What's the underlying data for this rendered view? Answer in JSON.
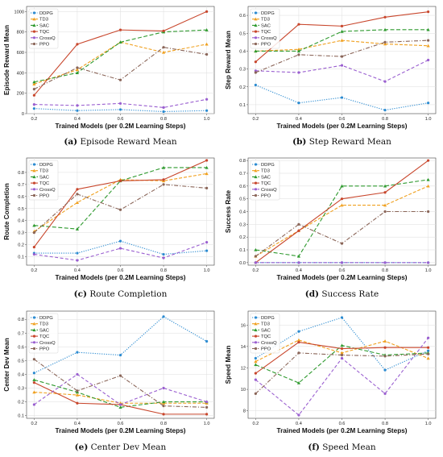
{
  "x_ticks": [
    "0.2",
    "0.4",
    "0.6",
    "0.8",
    "1.0"
  ],
  "legend": [
    "DDPG",
    "TD3",
    "SAC",
    "TQC",
    "CrossQ",
    "PPO"
  ],
  "styles": [
    {
      "color": "#2b8bd1",
      "dash": "1.2,1.6",
      "marker": "circle"
    },
    {
      "color": "#f0a01e",
      "dash": "4,2",
      "marker": "triangle"
    },
    {
      "color": "#2f9a2f",
      "dash": "5,2.5",
      "marker": "triangle"
    },
    {
      "color": "#c8462c",
      "dash": "",
      "marker": "circle"
    },
    {
      "color": "#9a5fd0",
      "dash": "4,2.5",
      "marker": "circle"
    },
    {
      "color": "#8a6558",
      "dash": "5,2,1.2,2",
      "marker": "circle"
    }
  ],
  "chart_data": [
    {
      "type": "line",
      "caption_letter": "(a)",
      "caption_text": " Episode Reward Mean",
      "xlabel": "Trained Models (per 0.2M Learning Steps)",
      "ylabel": "Episode Reward Mean",
      "x": [
        0.2,
        0.4,
        0.6,
        0.8,
        1.0
      ],
      "ylim": [
        0,
        1050
      ],
      "yticks": [
        0,
        200,
        400,
        600,
        800,
        1000
      ],
      "grid": true,
      "legend_position": "upper-left",
      "series": [
        {
          "name": "DDPG",
          "values": [
            50,
            30,
            40,
            20,
            30
          ]
        },
        {
          "name": "TD3",
          "values": [
            290,
            430,
            700,
            600,
            680
          ]
        },
        {
          "name": "SAC",
          "values": [
            310,
            400,
            700,
            800,
            820
          ]
        },
        {
          "name": "TQC",
          "values": [
            180,
            680,
            820,
            810,
            1000
          ]
        },
        {
          "name": "CrossQ",
          "values": [
            90,
            80,
            100,
            60,
            140
          ]
        },
        {
          "name": "PPO",
          "values": [
            240,
            450,
            330,
            650,
            580
          ]
        }
      ]
    },
    {
      "type": "line",
      "caption_letter": "(b)",
      "caption_text": " Step Reward Mean",
      "xlabel": "Trained Models (per 0.2M Learning Steps)",
      "ylabel": "Step Reward Mean",
      "x": [
        0.2,
        0.4,
        0.6,
        0.8,
        1.0
      ],
      "ylim": [
        0.05,
        0.65
      ],
      "yticks": [
        0.1,
        0.2,
        0.3,
        0.4,
        0.5,
        0.6
      ],
      "grid": true,
      "legend_position": "upper-left",
      "series": [
        {
          "name": "DDPG",
          "values": [
            0.21,
            0.11,
            0.14,
            0.07,
            0.11
          ]
        },
        {
          "name": "TD3",
          "values": [
            0.4,
            0.41,
            0.46,
            0.44,
            0.43
          ]
        },
        {
          "name": "SAC",
          "values": [
            0.4,
            0.4,
            0.51,
            0.52,
            0.52
          ]
        },
        {
          "name": "TQC",
          "values": [
            0.34,
            0.55,
            0.54,
            0.59,
            0.62
          ]
        },
        {
          "name": "CrossQ",
          "values": [
            0.29,
            0.28,
            0.32,
            0.23,
            0.35
          ]
        },
        {
          "name": "PPO",
          "values": [
            0.28,
            0.38,
            0.37,
            0.45,
            0.46
          ]
        }
      ]
    },
    {
      "type": "line",
      "caption_letter": "(c)",
      "caption_text": " Route Completion",
      "xlabel": "Trained Models (per 0.2M Learning Steps)",
      "ylabel": "Route Completion",
      "x": [
        0.2,
        0.4,
        0.6,
        0.8,
        1.0
      ],
      "ylim": [
        0.03,
        0.92
      ],
      "yticks": [
        0.1,
        0.2,
        0.3,
        0.4,
        0.5,
        0.6,
        0.7,
        0.8
      ],
      "grid": true,
      "legend_position": "upper-left",
      "series": [
        {
          "name": "DDPG",
          "values": [
            0.13,
            0.13,
            0.23,
            0.12,
            0.15
          ]
        },
        {
          "name": "TD3",
          "values": [
            0.31,
            0.55,
            0.74,
            0.73,
            0.79
          ]
        },
        {
          "name": "SAC",
          "values": [
            0.36,
            0.33,
            0.73,
            0.84,
            0.84
          ]
        },
        {
          "name": "TQC",
          "values": [
            0.18,
            0.66,
            0.73,
            0.74,
            0.9
          ]
        },
        {
          "name": "CrossQ",
          "values": [
            0.12,
            0.07,
            0.17,
            0.09,
            0.22
          ]
        },
        {
          "name": "PPO",
          "values": [
            0.3,
            0.62,
            0.49,
            0.7,
            0.67
          ]
        }
      ]
    },
    {
      "type": "line",
      "caption_letter": "(d)",
      "caption_text": " Success Rate",
      "xlabel": "Trained Models (per 0.2M Learning Steps)",
      "ylabel": "Success Rate",
      "x": [
        0.2,
        0.4,
        0.6,
        0.8,
        1.0
      ],
      "ylim": [
        -0.02,
        0.82
      ],
      "yticks": [
        0.0,
        0.1,
        0.2,
        0.3,
        0.4,
        0.5,
        0.6,
        0.7,
        0.8
      ],
      "grid": true,
      "legend_position": "upper-left",
      "series": [
        {
          "name": "DDPG",
          "values": [
            0.0,
            0.0,
            0.0,
            0.0,
            0.0
          ]
        },
        {
          "name": "TD3",
          "values": [
            0.05,
            0.25,
            0.45,
            0.45,
            0.6
          ]
        },
        {
          "name": "SAC",
          "values": [
            0.1,
            0.05,
            0.6,
            0.6,
            0.65
          ]
        },
        {
          "name": "TQC",
          "values": [
            0.0,
            0.25,
            0.5,
            0.55,
            0.8
          ]
        },
        {
          "name": "CrossQ",
          "values": [
            0.0,
            0.0,
            0.0,
            0.0,
            0.0
          ]
        },
        {
          "name": "PPO",
          "values": [
            0.05,
            0.3,
            0.15,
            0.4,
            0.4
          ]
        }
      ]
    },
    {
      "type": "line",
      "caption_letter": "(e)",
      "caption_text": " Center Dev Mean",
      "xlabel": "Trained Models (per 0.2M Learning Steps)",
      "ylabel": "Center Dev Mean",
      "x": [
        0.2,
        0.4,
        0.6,
        0.8,
        1.0
      ],
      "ylim": [
        0.08,
        0.86
      ],
      "yticks": [
        0.1,
        0.2,
        0.3,
        0.4,
        0.5,
        0.6,
        0.7,
        0.8
      ],
      "grid": true,
      "legend_position": "upper-left",
      "series": [
        {
          "name": "DDPG",
          "values": [
            0.41,
            0.56,
            0.54,
            0.82,
            0.64
          ]
        },
        {
          "name": "TD3",
          "values": [
            0.27,
            0.25,
            0.19,
            0.19,
            0.19
          ]
        },
        {
          "name": "SAC",
          "values": [
            0.36,
            0.27,
            0.16,
            0.2,
            0.2
          ]
        },
        {
          "name": "TQC",
          "values": [
            0.34,
            0.19,
            0.18,
            0.11,
            0.11
          ]
        },
        {
          "name": "CrossQ",
          "values": [
            0.18,
            0.4,
            0.18,
            0.3,
            0.2
          ]
        },
        {
          "name": "PPO",
          "values": [
            0.51,
            0.28,
            0.39,
            0.17,
            0.16
          ]
        }
      ]
    },
    {
      "type": "line",
      "caption_letter": "(f)",
      "caption_text": " Speed Mean",
      "xlabel": "Trained Models (per 0.2M Learning Steps)",
      "ylabel": "Speed Mean",
      "x": [
        0.2,
        0.4,
        0.6,
        0.8,
        1.0
      ],
      "ylim": [
        7.3,
        17.3
      ],
      "yticks": [
        8,
        10,
        12,
        14,
        16
      ],
      "grid": true,
      "legend_position": "upper-left",
      "series": [
        {
          "name": "DDPG",
          "values": [
            12.9,
            15.4,
            16.7,
            11.8,
            13.6
          ]
        },
        {
          "name": "TD3",
          "values": [
            12.6,
            14.6,
            13.4,
            14.5,
            12.9
          ]
        },
        {
          "name": "SAC",
          "values": [
            12.3,
            10.6,
            14.1,
            13.2,
            13.4
          ]
        },
        {
          "name": "TQC",
          "values": [
            11.5,
            14.4,
            13.8,
            13.9,
            13.9
          ]
        },
        {
          "name": "CrossQ",
          "values": [
            10.9,
            7.6,
            12.9,
            9.6,
            14.8
          ]
        },
        {
          "name": "PPO",
          "values": [
            9.6,
            13.4,
            13.2,
            13.1,
            13.3
          ]
        }
      ]
    }
  ]
}
